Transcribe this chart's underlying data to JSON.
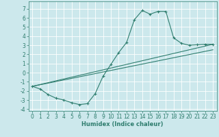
{
  "xlabel": "Humidex (Indice chaleur)",
  "bg_color": "#cce8ec",
  "grid_color": "#ffffff",
  "line_color": "#2e7d6e",
  "xlim": [
    -0.5,
    23.5
  ],
  "ylim": [
    -4.2,
    7.8
  ],
  "xticks": [
    0,
    1,
    2,
    3,
    4,
    5,
    6,
    7,
    8,
    9,
    10,
    11,
    12,
    13,
    14,
    15,
    16,
    17,
    18,
    19,
    20,
    21,
    22,
    23
  ],
  "yticks": [
    -4,
    -3,
    -2,
    -1,
    0,
    1,
    2,
    3,
    4,
    5,
    6,
    7
  ],
  "series1_x": [
    0,
    1,
    2,
    3,
    4,
    5,
    6,
    7,
    8,
    9,
    10,
    11,
    12,
    13,
    14,
    15,
    16,
    17,
    18,
    19,
    20,
    21,
    22,
    23
  ],
  "series1_y": [
    -1.5,
    -1.8,
    -2.4,
    -2.8,
    -3.0,
    -3.3,
    -3.5,
    -3.4,
    -2.3,
    -0.4,
    0.9,
    2.2,
    3.3,
    5.8,
    6.8,
    6.4,
    6.7,
    6.7,
    3.8,
    3.2,
    3.0,
    3.05,
    3.1,
    3.1
  ],
  "series2_x": [
    0,
    23
  ],
  "series2_y": [
    -1.5,
    3.1
  ],
  "series3_x": [
    0,
    23
  ],
  "series3_y": [
    -1.5,
    2.5
  ],
  "xlabel_fontsize": 6,
  "tick_fontsize": 5.5
}
